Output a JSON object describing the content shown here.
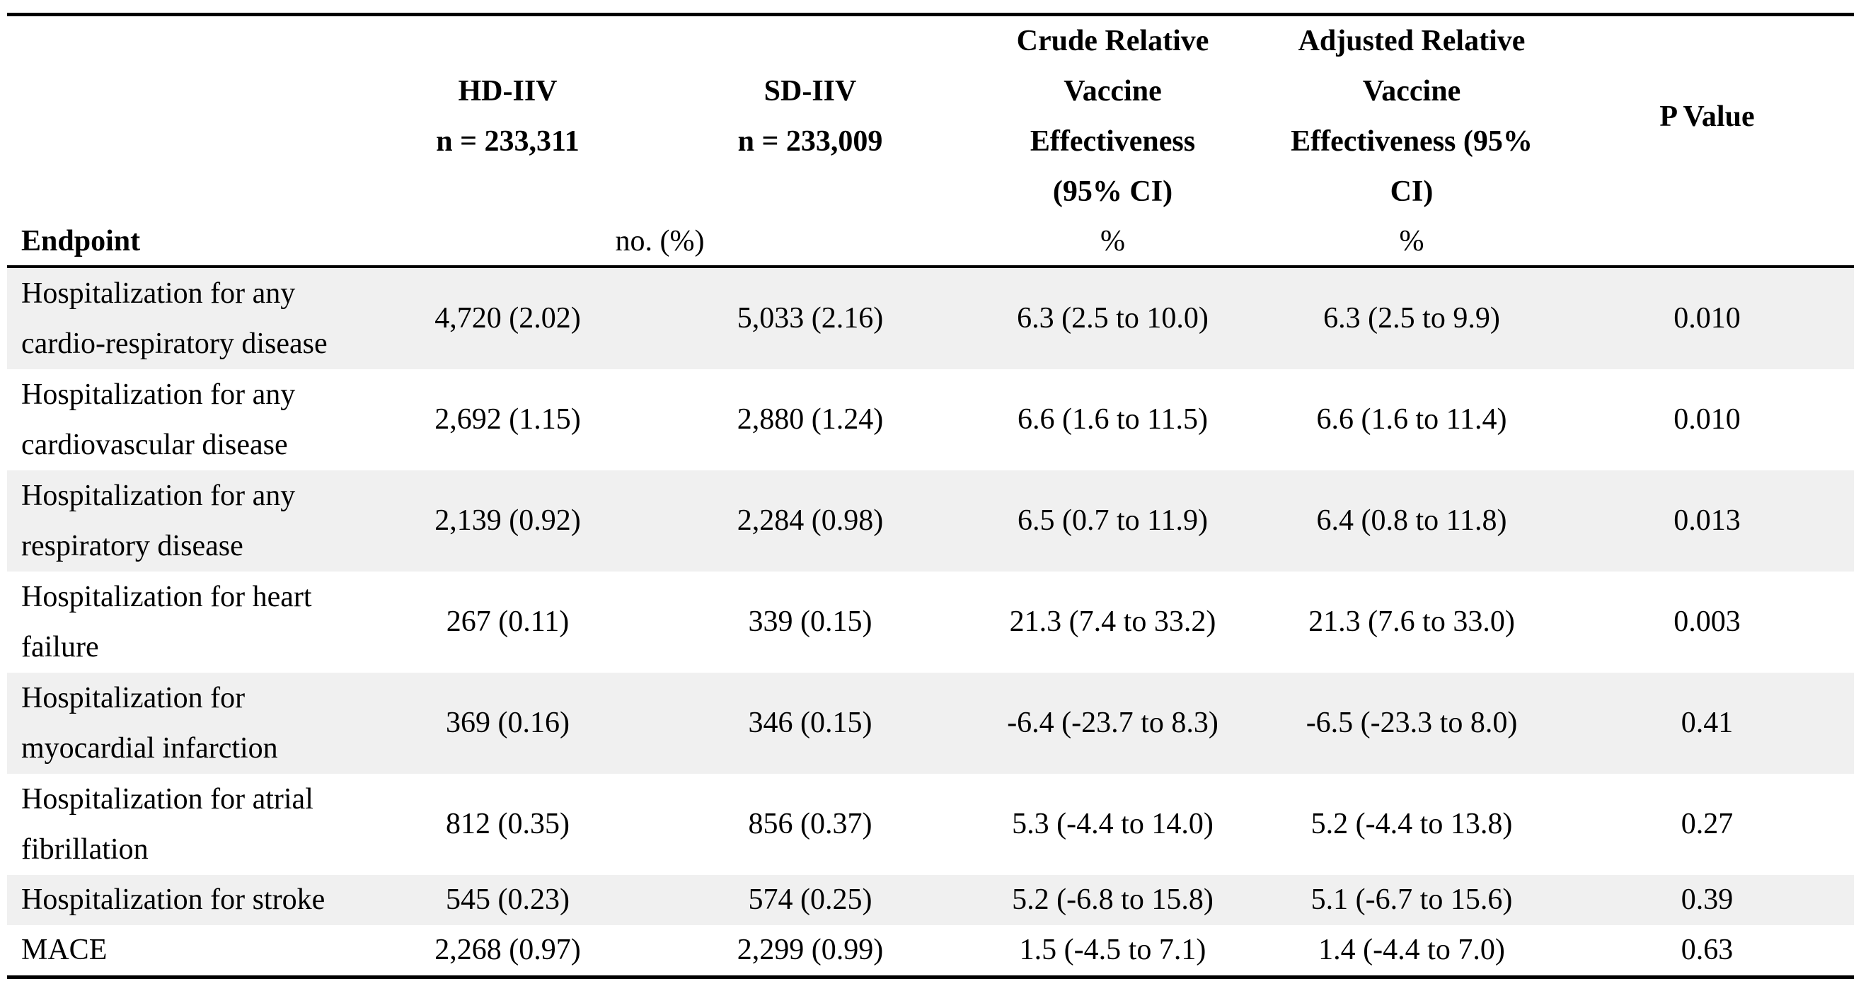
{
  "colors": {
    "row_shade": "#f0f0f0",
    "rule": "#000000",
    "background": "#ffffff"
  },
  "table": {
    "header": {
      "endpoint_label": "Endpoint",
      "hd": {
        "lines": [
          "HD-IIV",
          "n = 233,311"
        ]
      },
      "sd": {
        "lines": [
          "SD-IIV",
          "n = 233,009"
        ]
      },
      "crude": {
        "lines": [
          "Crude Relative",
          "Vaccine",
          "Effectiveness",
          "(95% CI)"
        ]
      },
      "adjusted": {
        "lines": [
          "Adjusted Relative",
          "Vaccine",
          "Effectiveness (95%",
          "CI)"
        ]
      },
      "p_label": "P Value",
      "subheader": {
        "counts_unit": "no. (%)",
        "crude_unit": "%",
        "adjusted_unit": "%"
      }
    },
    "rows": [
      {
        "endpoint": "Hospitalization for any cardio-respiratory disease",
        "hd": "4,720 (2.02)",
        "sd": "5,033 (2.16)",
        "crude": "6.3 (2.5 to 10.0)",
        "adjusted": "6.3 (2.5 to 9.9)",
        "p": "0.010"
      },
      {
        "endpoint": "Hospitalization for any cardiovascular disease",
        "hd": "2,692 (1.15)",
        "sd": "2,880 (1.24)",
        "crude": "6.6 (1.6 to 11.5)",
        "adjusted": "6.6 (1.6 to 11.4)",
        "p": "0.010"
      },
      {
        "endpoint": "Hospitalization for any respiratory disease",
        "hd": "2,139 (0.92)",
        "sd": "2,284 (0.98)",
        "crude": "6.5 (0.7 to 11.9)",
        "adjusted": "6.4 (0.8 to 11.8)",
        "p": "0.013"
      },
      {
        "endpoint": "Hospitalization for heart failure",
        "hd": "267 (0.11)",
        "sd": "339 (0.15)",
        "crude": "21.3 (7.4 to 33.2)",
        "adjusted": "21.3 (7.6 to 33.0)",
        "p": "0.003"
      },
      {
        "endpoint": "Hospitalization for myocardial infarction",
        "hd": "369 (0.16)",
        "sd": "346 (0.15)",
        "crude": "-6.4 (-23.7 to 8.3)",
        "adjusted": "-6.5 (-23.3 to 8.0)",
        "p": "0.41"
      },
      {
        "endpoint": "Hospitalization for atrial fibrillation",
        "hd": "812 (0.35)",
        "sd": "856 (0.37)",
        "crude": "5.3 (-4.4 to 14.0)",
        "adjusted": "5.2 (-4.4 to 13.8)",
        "p": "0.27"
      },
      {
        "endpoint": "Hospitalization for stroke",
        "hd": "545 (0.23)",
        "sd": "574 (0.25)",
        "crude": "5.2 (-6.8 to 15.8)",
        "adjusted": "5.1 (-6.7 to 15.6)",
        "p": "0.39"
      },
      {
        "endpoint": "MACE",
        "hd": "2,268 (0.97)",
        "sd": "2,299 (0.99)",
        "crude": "1.5 (-4.5 to 7.1)",
        "adjusted": "1.4 (-4.4 to 7.0)",
        "p": "0.63"
      }
    ]
  }
}
